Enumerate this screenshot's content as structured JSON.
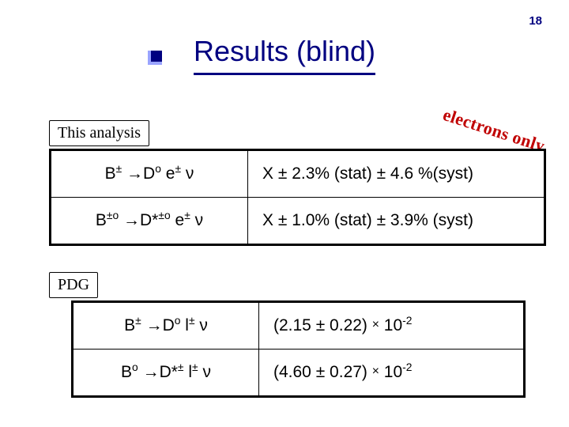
{
  "pageNumber": "18",
  "title": "Results (blind)",
  "colors": {
    "heading": "#000080",
    "stamp": "#c00000",
    "border": "#000000",
    "background": "#ffffff"
  },
  "thisAnalysis": {
    "label": "This analysis",
    "rows": [
      {
        "decay_html": "B<sup>±</sup> <span class='arrow'>→</span>D<sup>o</sup> e<sup>±</sup> ν",
        "result_html": "X ± 2.3% (stat) ± 4.6 %(syst)"
      },
      {
        "decay_html": "B<sup>±o</sup> <span class='arrow'>→</span>D*<sup>±o</sup> e<sup>±</sup> ν",
        "result_html": "X ± 1.0% (stat) ± 3.9% (syst)"
      }
    ]
  },
  "pdg": {
    "label": "PDG",
    "rows": [
      {
        "decay_html": "B<sup>±</sup> <span class='arrow'>→</span>D<sup>o</sup> l<sup>±</sup> ν",
        "result_html": "(2.15 ± 0.22) <span class='times'>×</span> 10<sup>-2</sup>"
      },
      {
        "decay_html": "B<sup>o</sup> <span class='arrow'>→</span>D*<sup>±</sup> l<sup>±</sup> ν",
        "result_html": "(4.60 ± 0.27) <span class='times'>×</span> 10<sup>-2</sup>"
      }
    ]
  },
  "stamp": "electrons  only"
}
